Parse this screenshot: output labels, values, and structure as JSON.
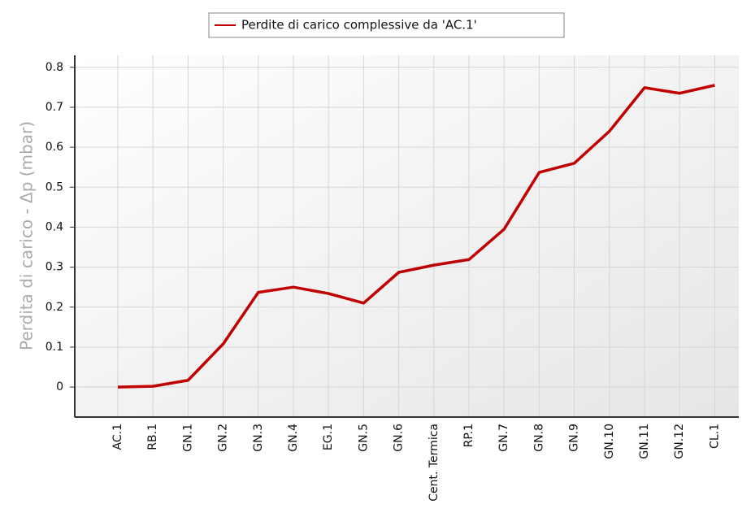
{
  "chart_data": {
    "type": "line",
    "y_label": "Perdita di carico - Δp (mbar)",
    "categories": [
      "AC.1",
      "RB.1",
      "GN.1",
      "GN.2",
      "GN.3",
      "GN.4",
      "EG.1",
      "GN.5",
      "GN.6",
      "Cent. Termica",
      "RP.1",
      "GN.7",
      "GN.8",
      "GN.9",
      "GN.10",
      "GN.11",
      "GN.12",
      "CL.1"
    ],
    "series": [
      {
        "name": "Perdite di carico complessive da 'AC.1'",
        "color": "#c00000",
        "values": [
          0,
          0.002,
          0.017,
          0.108,
          0.237,
          0.25,
          0.234,
          0.21,
          0.287,
          0.305,
          0.319,
          0.395,
          0.537,
          0.56,
          0.64,
          0.749,
          0.735,
          0.755
        ]
      }
    ],
    "ylim": [
      -0.075,
      0.83
    ],
    "yticks": [
      0,
      0.1,
      0.2,
      0.3,
      0.4,
      0.5,
      0.6,
      0.7,
      0.8
    ],
    "grid": true,
    "legend": "top"
  }
}
